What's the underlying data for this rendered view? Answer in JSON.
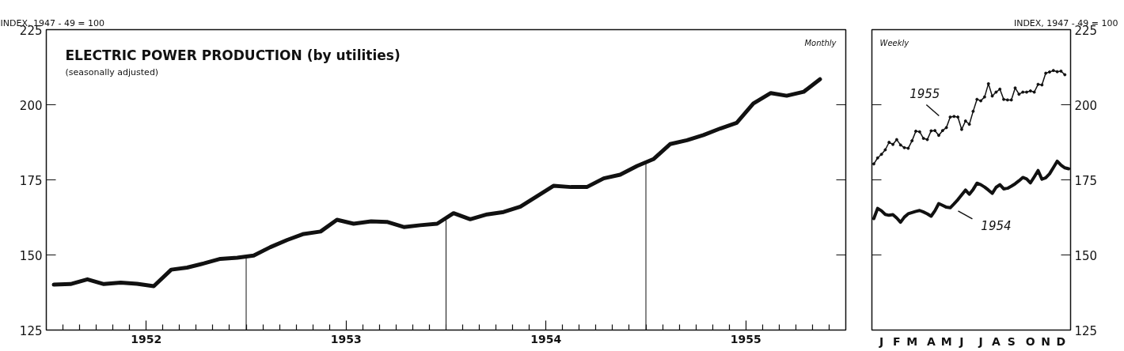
{
  "chart_data": [
    {
      "type": "line",
      "title": "ELECTRIC POWER PRODUCTION (by utilities)",
      "subtitle": "(seasonally adjusted)",
      "ylabel": "INDEX, 1947 - 49 = 100",
      "annotations": [
        "Monthly"
      ],
      "x": [
        "1951-07-15",
        "1951-08-15",
        "1951-09-15",
        "1951-10-15",
        "1951-11-15",
        "1951-12-15",
        "1952-01-15",
        "1952-02-15",
        "1952-03-15",
        "1952-04-15",
        "1952-05-15",
        "1952-06-15",
        "1952-07-15",
        "1952-08-15",
        "1952-09-15",
        "1952-10-15",
        "1952-11-15",
        "1952-12-15",
        "1953-01-15",
        "1953-02-15",
        "1953-03-15",
        "1953-04-15",
        "1953-05-15",
        "1953-06-15",
        "1953-07-15",
        "1953-08-15",
        "1953-09-15",
        "1953-10-15",
        "1953-11-15",
        "1953-12-15",
        "1954-01-15",
        "1954-02-15",
        "1954-03-15",
        "1954-04-15",
        "1954-05-15",
        "1954-06-15",
        "1954-07-15",
        "1954-08-15",
        "1954-09-15",
        "1954-10-15",
        "1954-11-15",
        "1954-12-15",
        "1955-01-15",
        "1955-02-15",
        "1955-03-15",
        "1955-04-15",
        "1955-05-15"
      ],
      "series": [
        {
          "color": "#111111",
          "values": [
            140.1,
            140.3,
            141.9,
            140.3,
            140.8,
            140.4,
            139.6,
            145.1,
            145.8,
            147.2,
            148.7,
            149.1,
            149.8,
            152.6,
            155.0,
            157.0,
            157.8,
            161.7,
            160.4,
            161.2,
            161.0,
            159.3,
            159.9,
            160.4,
            163.9,
            161.9,
            163.5,
            164.3,
            166.1,
            169.5,
            173.0,
            172.6,
            172.6,
            175.5,
            176.7,
            179.6,
            181.9,
            186.9,
            188.2,
            189.9,
            192.1,
            194.0,
            200.4,
            203.9,
            203.0,
            204.3,
            208.5
          ]
        }
      ],
      "ref_lines": [
        {
          "axis": "x",
          "value": "1952-07",
          "color": "#111111"
        },
        {
          "axis": "x",
          "value": "1953-07",
          "color": "#111111"
        },
        {
          "axis": "x",
          "value": "1954-07",
          "color": "#111111"
        }
      ],
      "xlim": [
        "1951-07",
        "1955-07"
      ],
      "xticks": [
        {
          "value": "1951-08",
          "label": null
        },
        {
          "value": "1951-09",
          "label": null
        },
        {
          "value": "1951-10",
          "label": null
        },
        {
          "value": "1951-11",
          "label": null
        },
        {
          "value": "1951-12",
          "label": null
        },
        {
          "value": "1952-01",
          "label": "1952"
        },
        {
          "value": "1952-02",
          "label": null
        },
        {
          "value": "1952-03",
          "label": null
        },
        {
          "value": "1952-04",
          "label": null
        },
        {
          "value": "1952-05",
          "label": null
        },
        {
          "value": "1952-06",
          "label": null
        },
        {
          "value": "1952-07",
          "label": null
        },
        {
          "value": "1952-08",
          "label": null
        },
        {
          "value": "1952-09",
          "label": null
        },
        {
          "value": "1952-10",
          "label": null
        },
        {
          "value": "1952-11",
          "label": null
        },
        {
          "value": "1952-12",
          "label": null
        },
        {
          "value": "1953-01",
          "label": "1953"
        },
        {
          "value": "1953-02",
          "label": null
        },
        {
          "value": "1953-03",
          "label": null
        },
        {
          "value": "1953-04",
          "label": null
        },
        {
          "value": "1953-05",
          "label": null
        },
        {
          "value": "1953-06",
          "label": null
        },
        {
          "value": "1953-07",
          "label": null
        },
        {
          "value": "1953-08",
          "label": null
        },
        {
          "value": "1953-09",
          "label": null
        },
        {
          "value": "1953-10",
          "label": null
        },
        {
          "value": "1953-11",
          "label": null
        },
        {
          "value": "1953-12",
          "label": null
        },
        {
          "value": "1954-01",
          "label": "1954"
        },
        {
          "value": "1954-02",
          "label": null
        },
        {
          "value": "1954-03",
          "label": null
        },
        {
          "value": "1954-04",
          "label": null
        },
        {
          "value": "1954-05",
          "label": null
        },
        {
          "value": "1954-06",
          "label": null
        },
        {
          "value": "1954-07",
          "label": null
        },
        {
          "value": "1954-08",
          "label": null
        },
        {
          "value": "1954-09",
          "label": null
        },
        {
          "value": "1954-10",
          "label": null
        },
        {
          "value": "1954-11",
          "label": null
        },
        {
          "value": "1954-12",
          "label": null
        },
        {
          "value": "1955-01",
          "label": "1955"
        },
        {
          "value": "1955-02",
          "label": null
        },
        {
          "value": "1955-03",
          "label": null
        },
        {
          "value": "1955-04",
          "label": null
        },
        {
          "value": "1955-05",
          "label": null
        },
        {
          "value": "1955-06",
          "label": null
        }
      ],
      "ylim": [
        125,
        225
      ],
      "yticks": [
        125,
        150,
        175,
        200,
        225
      ],
      "grid": false,
      "legend": false,
      "marker": "none",
      "line_style": "solid"
    },
    {
      "type": "line",
      "ylabel": "INDEX, 1947 - 49 = 100",
      "annotations": [
        "Weekly"
      ],
      "series": [
        {
          "name": "1955",
          "color": "#111111",
          "marker": "circle",
          "values": [
            180.3,
            182.3,
            183.5,
            185.0,
            187.5,
            186.8,
            188.4,
            186.6,
            185.7,
            185.5,
            188.0,
            191.2,
            191.0,
            188.8,
            188.4,
            191.3,
            191.4,
            189.8,
            191.4,
            192.4,
            195.9,
            196.1,
            195.9,
            191.8,
            194.6,
            193.5,
            197.8,
            201.8,
            201.3,
            202.6,
            207.0,
            202.9,
            204.2,
            205.2,
            201.8,
            201.6,
            201.6,
            205.6,
            203.5,
            204.2,
            204.2,
            204.6,
            204.2,
            206.8,
            206.6,
            210.5,
            210.9,
            211.4,
            211.0,
            211.2,
            210.0,
            null
          ]
        },
        {
          "name": "1954",
          "color": "#111111",
          "values": [
            162.1,
            165.5,
            164.7,
            163.5,
            163.2,
            163.4,
            162.3,
            160.9,
            162.6,
            163.7,
            164.1,
            164.5,
            164.8,
            164.3,
            163.7,
            162.9,
            164.7,
            167.1,
            166.5,
            165.9,
            165.7,
            167.0,
            168.4,
            170.0,
            171.6,
            170.2,
            171.8,
            173.9,
            173.4,
            172.6,
            171.6,
            170.5,
            172.5,
            173.4,
            172.0,
            172.2,
            172.9,
            173.7,
            174.7,
            175.8,
            175.3,
            174.0,
            176.0,
            178.1,
            175.2,
            175.7,
            177.0,
            179.1,
            181.2,
            179.9,
            179.0,
            178.7
          ]
        }
      ],
      "categories": [
        null,
        null,
        "J",
        null,
        null,
        null,
        "F",
        null,
        null,
        null,
        "M",
        null,
        null,
        null,
        null,
        "A",
        null,
        null,
        null,
        "M",
        null,
        null,
        null,
        "J",
        null,
        null,
        null,
        null,
        "J",
        null,
        null,
        null,
        "A",
        null,
        null,
        null,
        "S",
        null,
        null,
        null,
        null,
        "O",
        null,
        null,
        null,
        "N",
        null,
        null,
        null,
        "D",
        null,
        null
      ],
      "ylim": [
        125,
        225
      ],
      "yticks": [
        125,
        150,
        175,
        200,
        225
      ],
      "grid": false,
      "legend": false,
      "line_style": "solid"
    }
  ]
}
